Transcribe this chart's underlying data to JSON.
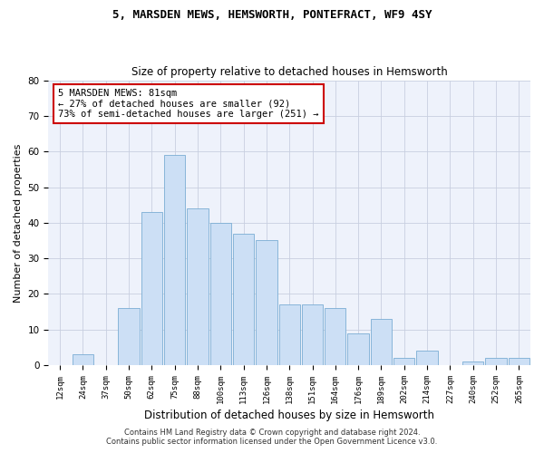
{
  "title1": "5, MARSDEN MEWS, HEMSWORTH, PONTEFRACT, WF9 4SY",
  "title2": "Size of property relative to detached houses in Hemsworth",
  "xlabel": "Distribution of detached houses by size in Hemsworth",
  "ylabel": "Number of detached properties",
  "categories": [
    "12sqm",
    "24sqm",
    "37sqm",
    "50sqm",
    "62sqm",
    "75sqm",
    "88sqm",
    "100sqm",
    "113sqm",
    "126sqm",
    "138sqm",
    "151sqm",
    "164sqm",
    "176sqm",
    "189sqm",
    "202sqm",
    "214sqm",
    "227sqm",
    "240sqm",
    "252sqm",
    "265sqm"
  ],
  "values": [
    0,
    3,
    0,
    16,
    43,
    59,
    44,
    40,
    37,
    35,
    17,
    17,
    16,
    9,
    13,
    2,
    4,
    0,
    1,
    2,
    2
  ],
  "bar_color": "#ccdff5",
  "bar_edge_color": "#7aadd4",
  "annotation_line1": "5 MARSDEN MEWS: 81sqm",
  "annotation_line2": "← 27% of detached houses are smaller (92)",
  "annotation_line3": "73% of semi-detached houses are larger (251) →",
  "annotation_box_color": "#ffffff",
  "annotation_box_edge_color": "#cc0000",
  "footer1": "Contains HM Land Registry data © Crown copyright and database right 2024.",
  "footer2": "Contains public sector information licensed under the Open Government Licence v3.0.",
  "bg_color": "#eef2fb",
  "grid_color": "#c8cfe0",
  "ylim": [
    0,
    80
  ],
  "yticks": [
    0,
    10,
    20,
    30,
    40,
    50,
    60,
    70,
    80
  ],
  "title1_fontsize": 9,
  "title2_fontsize": 8.5,
  "ylabel_fontsize": 8,
  "xlabel_fontsize": 8.5
}
